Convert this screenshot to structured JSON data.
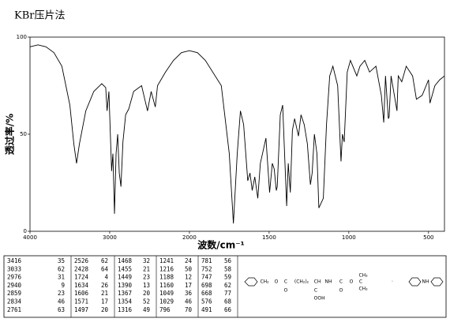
{
  "chart_data": {
    "type": "line",
    "title": "KBr压片法",
    "x_label": "波数/cm⁻¹",
    "y_label": "透过率/%",
    "xlim": [
      4000,
      400
    ],
    "xticks": [
      4000,
      3000,
      2000,
      1500,
      1000,
      500
    ],
    "ylim": [
      0,
      100
    ],
    "yticks": [
      0,
      50,
      100
    ],
    "x": [
      4000,
      3900,
      3800,
      3700,
      3600,
      3500,
      3450,
      3416,
      3380,
      3300,
      3200,
      3100,
      3050,
      3033,
      3010,
      2976,
      2960,
      2940,
      2920,
      2900,
      2880,
      2859,
      2834,
      2800,
      2761,
      2700,
      2600,
      2526,
      2480,
      2428,
      2400,
      2300,
      2200,
      2100,
      2000,
      1950,
      1900,
      1800,
      1750,
      1724,
      1700,
      1680,
      1660,
      1634,
      1620,
      1606,
      1590,
      1571,
      1555,
      1520,
      1497,
      1480,
      1468,
      1455,
      1449,
      1430,
      1415,
      1390,
      1380,
      1367,
      1354,
      1340,
      1316,
      1300,
      1280,
      1260,
      1241,
      1230,
      1216,
      1200,
      1188,
      1160,
      1140,
      1120,
      1100,
      1070,
      1049,
      1040,
      1029,
      1010,
      990,
      950,
      930,
      900,
      870,
      830,
      796,
      781,
      770,
      752,
      747,
      735,
      698,
      690,
      668,
      640,
      600,
      576,
      540,
      500,
      491,
      460,
      430,
      400
    ],
    "series": [
      {
        "name": "透过率",
        "color": "#000000",
        "values": [
          95,
          96,
          95,
          92,
          85,
          65,
          45,
          35,
          45,
          62,
          72,
          76,
          74,
          62,
          72,
          31,
          40,
          9,
          40,
          50,
          30,
          23,
          46,
          60,
          63,
          72,
          75,
          62,
          72,
          64,
          75,
          82,
          88,
          92,
          93,
          92,
          88,
          75,
          40,
          4,
          40,
          62,
          55,
          26,
          30,
          21,
          28,
          17,
          35,
          48,
          20,
          35,
          32,
          21,
          23,
          60,
          65,
          13,
          35,
          20,
          52,
          58,
          49,
          60,
          55,
          45,
          24,
          30,
          50,
          40,
          12,
          17,
          55,
          80,
          85,
          75,
          36,
          50,
          46,
          82,
          88,
          80,
          85,
          88,
          82,
          85,
          70,
          56,
          80,
          58,
          59,
          80,
          62,
          80,
          77,
          85,
          80,
          68,
          70,
          78,
          66,
          75,
          78,
          80
        ]
      }
    ]
  },
  "peak_table": [
    [
      [
        3416,
        35
      ],
      [
        3033,
        62
      ],
      [
        2976,
        31
      ],
      [
        2940,
        9
      ],
      [
        2859,
        23
      ],
      [
        2834,
        46
      ],
      [
        2761,
        63
      ]
    ],
    [
      [
        2526,
        62
      ],
      [
        2428,
        64
      ],
      [
        1724,
        4
      ],
      [
        1634,
        26
      ],
      [
        1606,
        21
      ],
      [
        1571,
        17
      ],
      [
        1497,
        20
      ]
    ],
    [
      [
        1468,
        32
      ],
      [
        1455,
        21
      ],
      [
        1449,
        23
      ],
      [
        1390,
        13
      ],
      [
        1367,
        20
      ],
      [
        1354,
        52
      ],
      [
        1316,
        49
      ]
    ],
    [
      [
        1241,
        24
      ],
      [
        1216,
        50
      ],
      [
        1188,
        12
      ],
      [
        1160,
        17
      ],
      [
        1049,
        36
      ],
      [
        1029,
        46
      ],
      [
        796,
        70
      ]
    ],
    [
      [
        781,
        56
      ],
      [
        752,
        58
      ],
      [
        747,
        59
      ],
      [
        698,
        62
      ],
      [
        668,
        77
      ],
      [
        576,
        68
      ],
      [
        491,
        66
      ]
    ]
  ],
  "structure": {
    "labels": [
      "CH₂",
      "O",
      "C",
      "O",
      "(CH₂)₂",
      "CH",
      "NH",
      "C",
      "O",
      "O",
      "C",
      "CH₃",
      "CH₃",
      "C",
      "O",
      "OH",
      "·",
      "NH"
    ]
  }
}
